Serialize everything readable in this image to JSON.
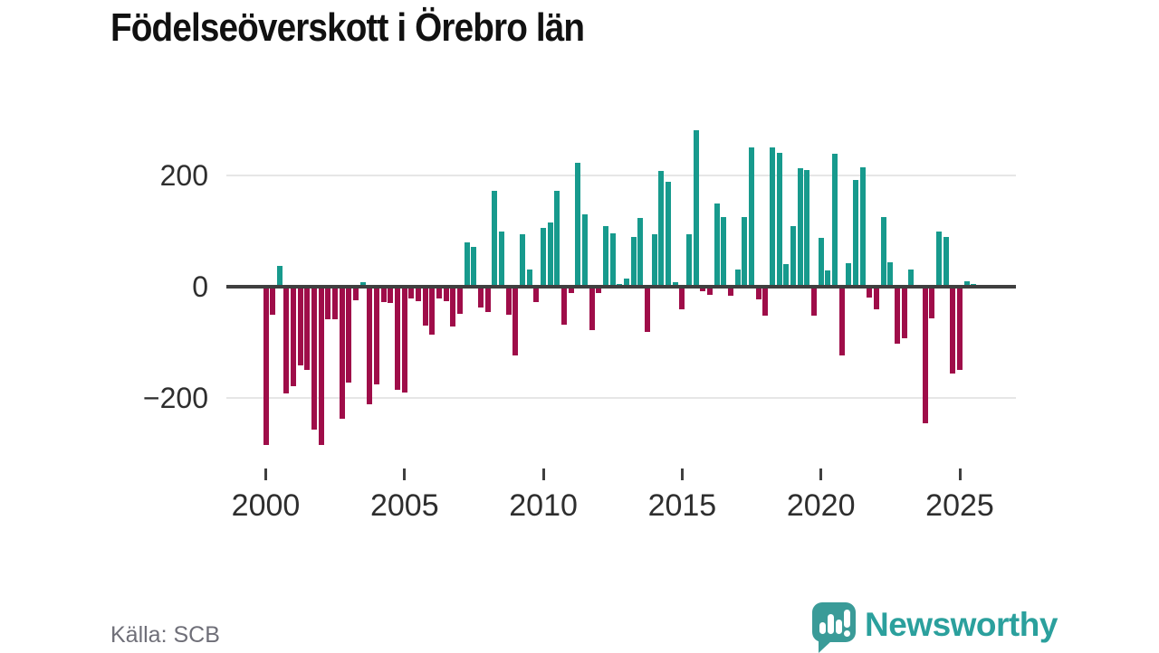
{
  "title": "Födelseöverskott i Örebro län",
  "source": "Källa: SCB",
  "logo": {
    "text": "Newsworthy"
  },
  "colors": {
    "positive": "#179a8d",
    "negative": "#9f0d49",
    "axis": "#3f3f3f",
    "grid": "#e6e6e6",
    "title": "#111111",
    "tick_label": "#2e2e2e",
    "source_text": "#6f6f78",
    "logo": "#3a9b98"
  },
  "chart_data": {
    "type": "bar",
    "title": "Födelseöverskott i Örebro län",
    "frequency": "quarterly",
    "start_year": 2000,
    "start_quarter": 1,
    "values": [
      -285,
      -51,
      37,
      -192,
      -179,
      -141,
      -150,
      -257,
      -285,
      -58,
      -58,
      -238,
      -173,
      -25,
      8,
      -211,
      -175,
      -27,
      -30,
      -186,
      -190,
      -21,
      -26,
      -70,
      -86,
      -21,
      -26,
      -72,
      -48,
      80,
      72,
      -37,
      -45,
      173,
      99,
      -50,
      -124,
      95,
      31,
      -27,
      105,
      115,
      173,
      -68,
      -11,
      222,
      130,
      -78,
      -11,
      109,
      96,
      5,
      14,
      89,
      124,
      -81,
      94,
      208,
      188,
      8,
      -40,
      95,
      281,
      -8,
      -14,
      150,
      126,
      -17,
      31,
      126,
      250,
      -22,
      -52,
      251,
      241,
      40,
      109,
      213,
      209,
      -52,
      87,
      30,
      239,
      -124,
      42,
      192,
      214,
      -19,
      -41,
      126,
      44,
      -102,
      -92,
      31,
      4,
      -246,
      -57,
      100,
      90,
      -156,
      -149,
      10,
      5
    ],
    "ylim": [
      -300,
      300
    ],
    "yticks": [
      {
        "value": 200,
        "label": "200"
      },
      {
        "value": 0,
        "label": "0"
      },
      {
        "value": -200,
        "label": "−200"
      }
    ],
    "xticks": [
      {
        "year": 2000,
        "label": "2000"
      },
      {
        "year": 2005,
        "label": "2005"
      },
      {
        "year": 2010,
        "label": "2010"
      },
      {
        "year": 2015,
        "label": "2015"
      },
      {
        "year": 2020,
        "label": "2020"
      },
      {
        "year": 2025,
        "label": "2025"
      }
    ],
    "grid": true,
    "legend": "none",
    "positive_color": "#179a8d",
    "negative_color": "#9f0d49"
  }
}
